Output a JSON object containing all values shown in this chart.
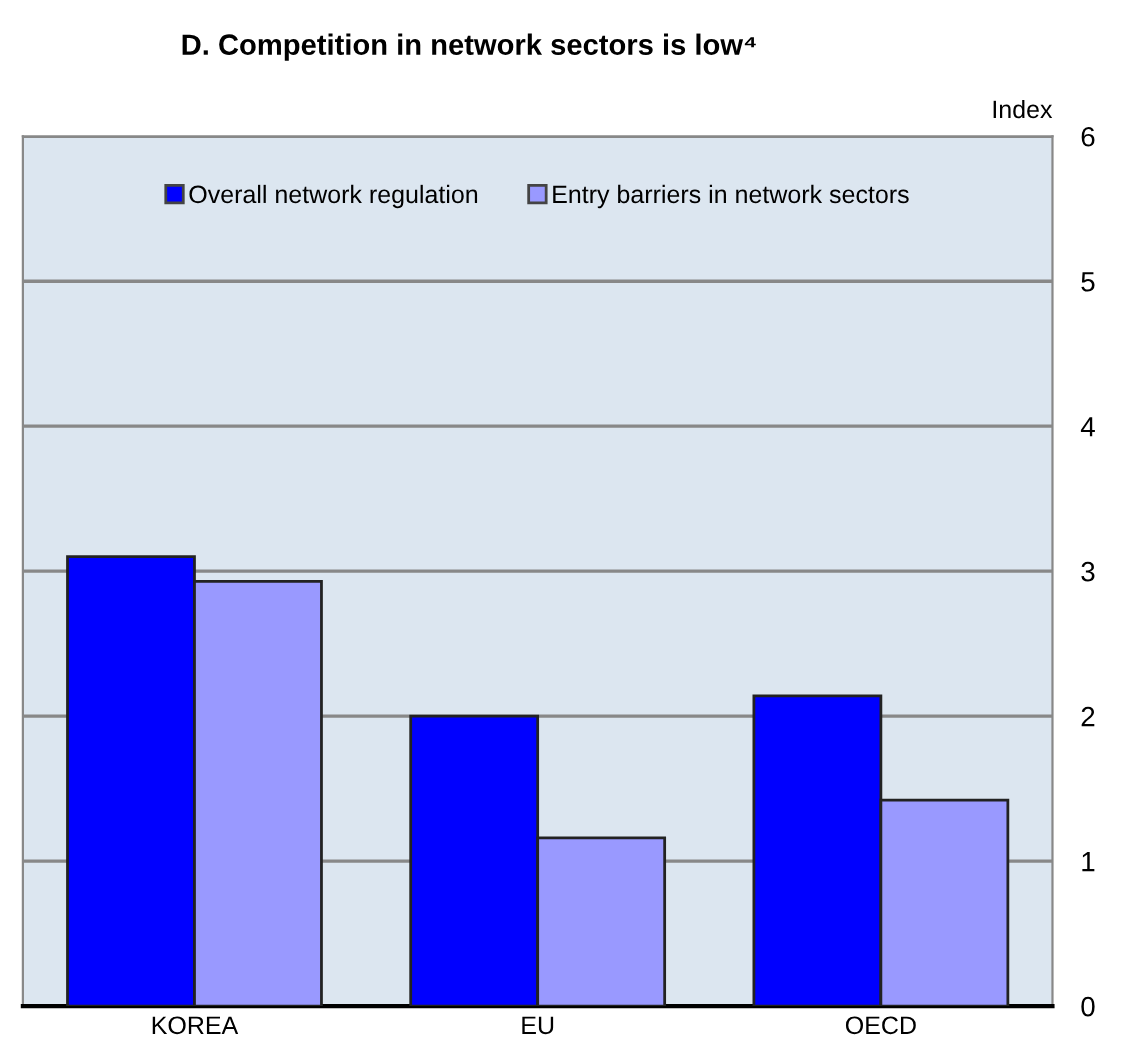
{
  "chart_data": {
    "type": "bar",
    "title": "D. Competition in network sectors is low⁴",
    "ylabel": "Index",
    "categories": [
      "KOREA",
      "EU",
      "OECD"
    ],
    "series": [
      {
        "name": "Overall network regulation",
        "color": "#0000ff",
        "values": [
          3.1,
          2.0,
          2.14
        ]
      },
      {
        "name": "Entry barriers in network sectors",
        "color": "#9999ff",
        "values": [
          2.93,
          1.16,
          1.42
        ]
      }
    ],
    "ylim": [
      0,
      6
    ],
    "yticks": [
      0,
      1,
      2,
      3,
      4,
      5,
      6
    ],
    "grid": "y",
    "legend": "top"
  }
}
